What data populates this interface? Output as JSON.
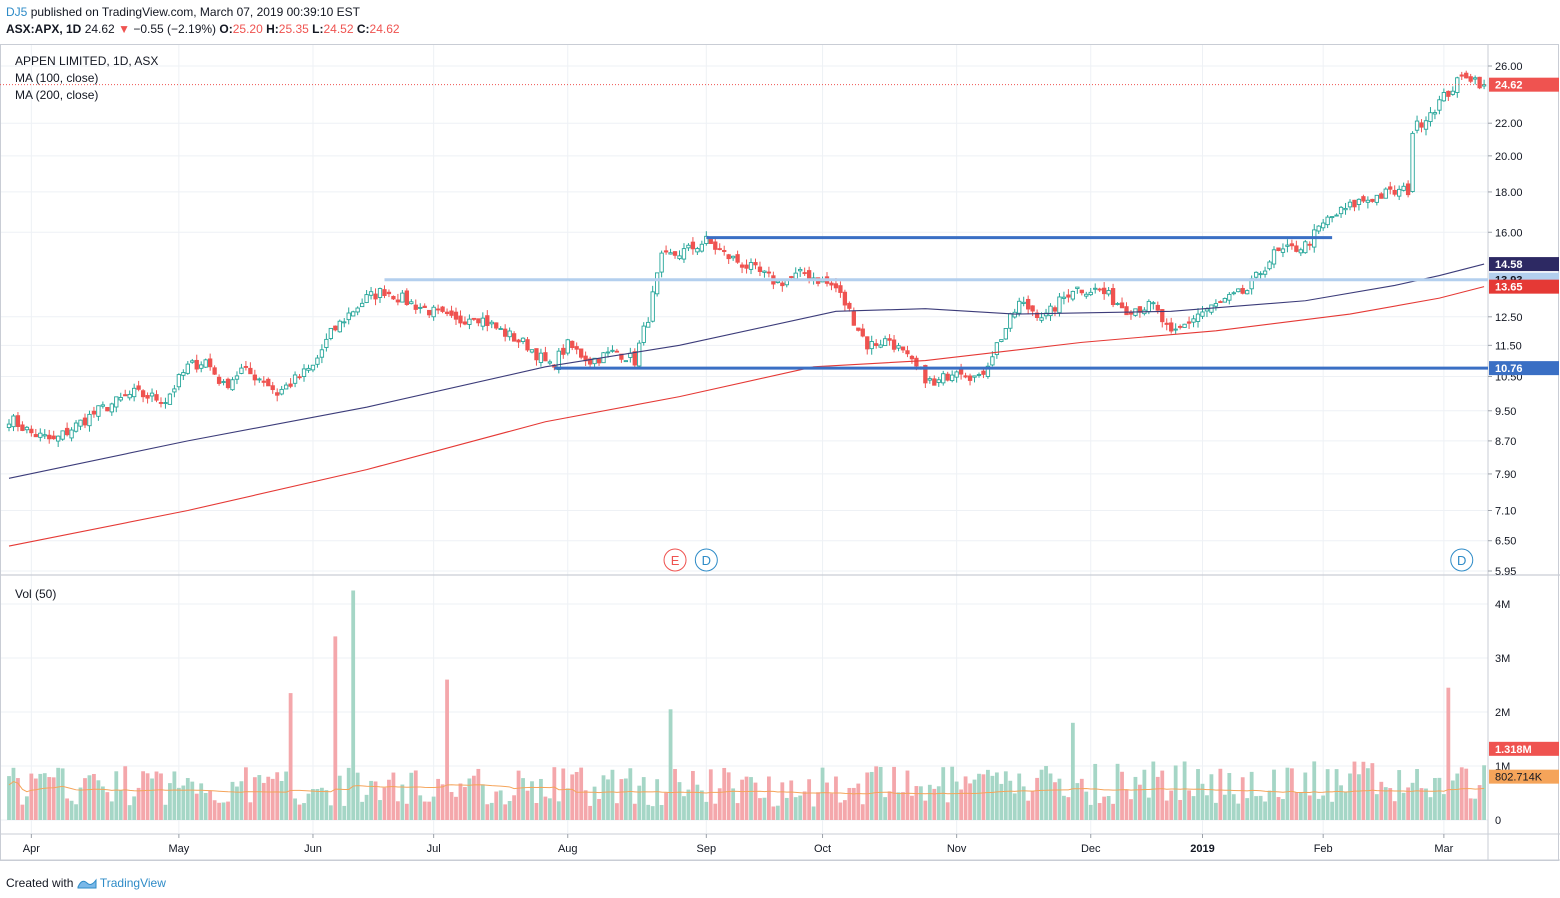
{
  "header": {
    "author": "DJ5",
    "published_text": "published on TradingView.com, March 07, 2019 00:39:10 EST",
    "symbol_line": "ASX:APX, 1D",
    "last": "24.62",
    "change": "−0.55 (−2.19%)",
    "open_label": "O:",
    "open": "25.20",
    "high_label": "H:",
    "high": "25.35",
    "low_label": "L:",
    "low": "24.52",
    "close_label": "C:",
    "close": "24.62"
  },
  "legend": {
    "title": "APPEN LIMITED, 1D, ASX",
    "ma100": "MA (100, close)",
    "ma200": "MA (200, close)",
    "vol": "Vol (50)"
  },
  "footer": {
    "created": "Created with",
    "brand": "TradingView"
  },
  "colors": {
    "up": "#26a69a",
    "down": "#ef5350",
    "vol_up": "#a5d6c6",
    "vol_down": "#f4a7ab",
    "ma100": "#3c3c7a",
    "ma200": "#e53935",
    "vol_ma": "#f5a45a",
    "hline": "#3a6fc4",
    "hline_light": "#b3cfee",
    "grid": "#eef1f5",
    "badge_ma100": "#2d2963"
  },
  "chart_data": {
    "type": "candlestick",
    "title": "APPEN LIMITED, 1D, ASX",
    "scale": "log",
    "ylim": [
      5.95,
      26.9
    ],
    "y_ticks": [
      "26.00",
      "22.00",
      "20.00",
      "18.00",
      "16.00",
      "12.50",
      "11.50",
      "10.50",
      "9.50",
      "8.70",
      "7.90",
      "7.10",
      "6.50",
      "5.95"
    ],
    "x_labels": [
      "Apr",
      "May",
      "Jun",
      "Jul",
      "Aug",
      "Sep",
      "Oct",
      "Nov",
      "Dec",
      "2019",
      "Feb",
      "Mar"
    ],
    "x_label_day_index": [
      5,
      38,
      68,
      95,
      125,
      156,
      182,
      212,
      242,
      267,
      294,
      321
    ],
    "start_close": 9.3,
    "anchors": [
      [
        0,
        9.3
      ],
      [
        5,
        8.9
      ],
      [
        10,
        8.7
      ],
      [
        20,
        9.5
      ],
      [
        28,
        10.0
      ],
      [
        35,
        9.8
      ],
      [
        40,
        10.8
      ],
      [
        44,
        11.0
      ],
      [
        48,
        10.2
      ],
      [
        52,
        10.7
      ],
      [
        57,
        10.4
      ],
      [
        60,
        10.0
      ],
      [
        68,
        10.8
      ],
      [
        72,
        11.9
      ],
      [
        76,
        12.6
      ],
      [
        80,
        13.2
      ],
      [
        84,
        13.5
      ],
      [
        90,
        13.0
      ],
      [
        96,
        12.6
      ],
      [
        100,
        12.3
      ],
      [
        104,
        12.6
      ],
      [
        110,
        12.0
      ],
      [
        116,
        11.5
      ],
      [
        121,
        10.8
      ],
      [
        125,
        11.5
      ],
      [
        130,
        11.0
      ],
      [
        136,
        11.3
      ],
      [
        140,
        11.0
      ],
      [
        143,
        12.5
      ],
      [
        146,
        14.8
      ],
      [
        152,
        15.2
      ],
      [
        156,
        15.6
      ],
      [
        160,
        15.0
      ],
      [
        166,
        14.4
      ],
      [
        172,
        13.8
      ],
      [
        178,
        14.2
      ],
      [
        185,
        13.6
      ],
      [
        189,
        12.4
      ],
      [
        192,
        11.5
      ],
      [
        197,
        11.7
      ],
      [
        202,
        10.9
      ],
      [
        207,
        10.2
      ],
      [
        212,
        10.8
      ],
      [
        217,
        10.4
      ],
      [
        222,
        11.8
      ],
      [
        226,
        13.0
      ],
      [
        232,
        12.5
      ],
      [
        238,
        13.6
      ],
      [
        244,
        13.5
      ],
      [
        250,
        12.8
      ],
      [
        256,
        12.9
      ],
      [
        260,
        11.8
      ],
      [
        266,
        12.6
      ],
      [
        271,
        13.0
      ],
      [
        277,
        13.5
      ],
      [
        283,
        15.0
      ],
      [
        290,
        15.4
      ],
      [
        295,
        16.6
      ],
      [
        302,
        17.5
      ],
      [
        308,
        17.9
      ],
      [
        313,
        18.1
      ],
      [
        314,
        21.5
      ],
      [
        320,
        23.4
      ],
      [
        326,
        25.4
      ],
      [
        330,
        24.62
      ]
    ],
    "ma100": {
      "name": "MA (100, close)",
      "last": "14.58",
      "points": [
        [
          0,
          7.8
        ],
        [
          40,
          8.7
        ],
        [
          80,
          9.6
        ],
        [
          120,
          10.8
        ],
        [
          150,
          11.5
        ],
        [
          185,
          12.7
        ],
        [
          205,
          12.8
        ],
        [
          225,
          12.6
        ],
        [
          260,
          12.7
        ],
        [
          290,
          13.1
        ],
        [
          310,
          13.7
        ],
        [
          320,
          14.1
        ],
        [
          330,
          14.58
        ]
      ]
    },
    "ma200": {
      "name": "MA (200, close)",
      "last": "13.65",
      "points": [
        [
          0,
          6.4
        ],
        [
          40,
          7.1
        ],
        [
          80,
          8.0
        ],
        [
          120,
          9.2
        ],
        [
          150,
          9.9
        ],
        [
          180,
          10.8
        ],
        [
          205,
          11.0
        ],
        [
          240,
          11.6
        ],
        [
          270,
          12.0
        ],
        [
          300,
          12.6
        ],
        [
          320,
          13.2
        ],
        [
          330,
          13.65
        ]
      ]
    },
    "horizontal_levels": [
      {
        "value": 15.75,
        "from_day": 156,
        "to_day": 296,
        "style": "bold"
      },
      {
        "value": 13.93,
        "from_day": 84,
        "to_day": 330,
        "style": "light"
      },
      {
        "value": 10.76,
        "from_day": 122,
        "to_day": 330,
        "style": "bold",
        "label": "10.76"
      }
    ],
    "price_badges": [
      {
        "value": "24.62",
        "color": "#ef5350"
      },
      {
        "value": "14.58",
        "color": "#2d2963"
      },
      {
        "value": "13.93",
        "color": "#b3cfee"
      },
      {
        "value": "13.65",
        "color": "#e53935"
      },
      {
        "value": "10.76",
        "color": "#3a6fc4"
      }
    ],
    "events": [
      {
        "letter": "E",
        "day": 149,
        "color": "#ef5350"
      },
      {
        "letter": "D",
        "day": 156,
        "color": "#2e8bc7"
      },
      {
        "letter": "D",
        "day": 325,
        "color": "#2e8bc7"
      }
    ],
    "volume": {
      "name": "Vol (50)",
      "unit": "M",
      "ylim": [
        0,
        4.3
      ],
      "y_ticks": [
        "4M",
        "3M",
        "2M",
        "1M",
        "0"
      ],
      "ma_last": "802.714K",
      "last": "1.318M",
      "spikes": [
        [
          63,
          2.35
        ],
        [
          73,
          3.4
        ],
        [
          77,
          4.25
        ],
        [
          98,
          2.6
        ],
        [
          148,
          2.05
        ],
        [
          238,
          1.8
        ],
        [
          322,
          2.45
        ]
      ]
    }
  }
}
